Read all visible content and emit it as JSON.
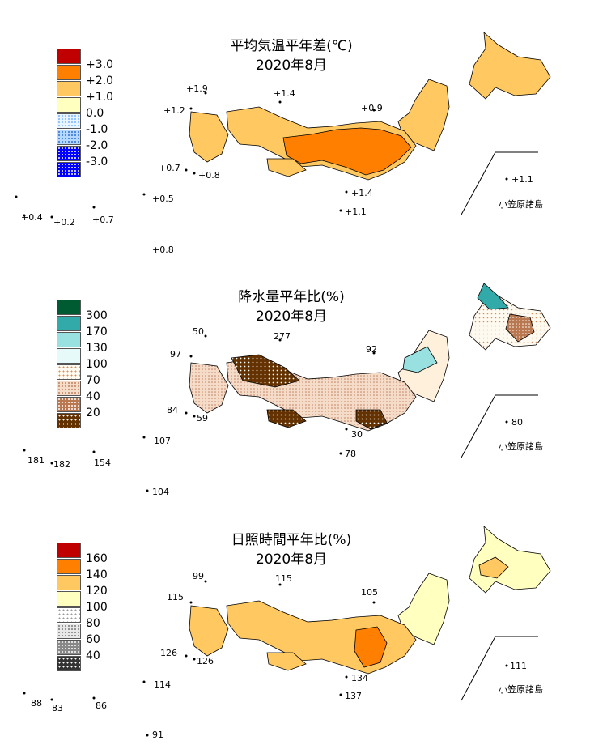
{
  "island_region_label": "小笠原諸島",
  "colors": {
    "temp": [
      "#c00000",
      "#ff8000",
      "#ffc860",
      "#ffffc0",
      "#c8e8ff",
      "#78b4ff",
      "#0000ff"
    ],
    "precip": [
      "#005a32",
      "#33aaaa",
      "#99e0e0",
      "#e6fafa",
      "#fff0dc",
      "#e6bca0",
      "#b97850",
      "#643200"
    ],
    "sun": [
      "#c00000",
      "#ff8000",
      "#ffc860",
      "#ffffc0",
      "#ffffff",
      "#c8c8c8",
      "#888888",
      "#333333"
    ]
  },
  "temp": {
    "title": "平均気温平年差(℃)",
    "subtitle": "2020年8月",
    "legend_ticks": [
      "+3.0",
      "+2.0",
      "+1.0",
      "0.0",
      "-1.0",
      "-2.0",
      "-3.0"
    ],
    "stations": [
      "+1.9",
      "+1.4",
      "+1.2",
      "+0.9",
      "+0.7",
      "+0.8",
      "+1.1",
      "+1.4",
      "+0.5",
      "+1.1",
      "+0.4",
      "+0.2",
      "+0.7",
      "+0.8"
    ]
  },
  "precip": {
    "title": "降水量平年比(%)",
    "subtitle": "2020年8月",
    "legend_ticks": [
      "300",
      "170",
      "130",
      "100",
      "70",
      "40",
      "20"
    ],
    "stations": [
      "50",
      "277",
      "97",
      "92",
      "84",
      "59",
      "80",
      "30",
      "107",
      "78",
      "181",
      "182",
      "154",
      "104"
    ]
  },
  "sun": {
    "title": "日照時間平年比(%)",
    "subtitle": "2020年8月",
    "legend_ticks": [
      "160",
      "140",
      "120",
      "100",
      "80",
      "60",
      "40"
    ],
    "stations": [
      "99",
      "115",
      "115",
      "105",
      "126",
      "126",
      "111",
      "134",
      "114",
      "137",
      "88",
      "83",
      "86",
      "91"
    ]
  }
}
